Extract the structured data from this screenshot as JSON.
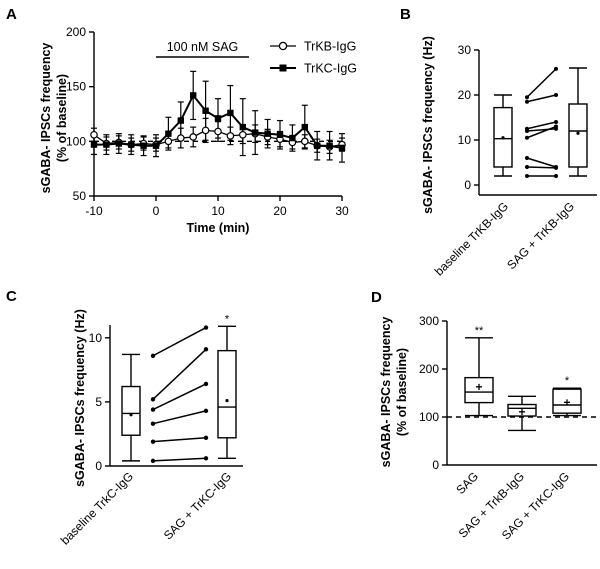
{
  "panels": {
    "A": "A",
    "B": "B",
    "C": "C",
    "D": "D"
  },
  "chart_data": [
    {
      "id": "A",
      "type": "line",
      "title": "",
      "xlabel": "Time (min)",
      "ylabel": [
        "sGABA- IPSCs frequency",
        "(% of baseline)"
      ],
      "xlim": [
        -10,
        30
      ],
      "ylim": [
        50,
        200
      ],
      "xticks": [
        -10,
        0,
        10,
        20,
        30
      ],
      "yticks": [
        50,
        100,
        150,
        200
      ],
      "annotation": "100 nM SAG",
      "sag_window": [
        0,
        15
      ],
      "reference_line": 100,
      "series": [
        {
          "name": "TrKB-IgG",
          "marker": "open-circle",
          "x": [
            -10,
            -8,
            -6,
            -4,
            -2,
            0,
            2,
            4,
            6,
            8,
            10,
            12,
            14,
            16,
            18,
            20,
            22,
            24,
            26,
            28,
            30
          ],
          "y": [
            106,
            98,
            99,
            97,
            98,
            97,
            100,
            103,
            104,
            110,
            109,
            105,
            106,
            107,
            104,
            102,
            99,
            100,
            96,
            95,
            97
          ],
          "err": [
            6,
            6,
            6,
            6,
            6,
            6,
            6,
            9,
            9,
            11,
            9,
            8,
            8,
            8,
            7,
            7,
            6,
            6,
            6,
            6,
            6
          ]
        },
        {
          "name": "TrKC-IgG",
          "marker": "filled-square",
          "x": [
            -10,
            -8,
            -6,
            -4,
            -2,
            0,
            2,
            4,
            6,
            8,
            10,
            12,
            14,
            16,
            18,
            20,
            22,
            24,
            26,
            28,
            30
          ],
          "y": [
            97,
            97,
            98,
            97,
            96,
            96,
            107,
            119,
            142,
            128,
            121,
            126,
            113,
            108,
            107,
            106,
            103,
            113,
            96,
            96,
            94
          ],
          "err": [
            9,
            9,
            9,
            9,
            9,
            10,
            15,
            17,
            22,
            27,
            18,
            25,
            26,
            20,
            13,
            13,
            12,
            20,
            13,
            13,
            13
          ]
        }
      ]
    },
    {
      "id": "B",
      "type": "box",
      "ylabel": "sGABA- IPSCs frequency (Hz)",
      "ylim": [
        0,
        30
      ],
      "yticks": [
        0,
        10,
        20,
        30
      ],
      "categories": [
        "baseline TrKB-IgG",
        "SAG + TrKB-IgG"
      ],
      "boxes": [
        {
          "min": 2,
          "q1": 4,
          "median": 10.3,
          "q3": 17.2,
          "max": 20,
          "mean": 10.5
        },
        {
          "min": 2,
          "q1": 4,
          "median": 12,
          "q3": 18,
          "max": 26,
          "mean": 11.5
        }
      ],
      "pairs": [
        [
          19.5,
          25.8
        ],
        [
          18.5,
          20
        ],
        [
          12.5,
          14
        ],
        [
          12,
          12.5
        ],
        [
          10.5,
          13
        ],
        [
          6,
          4
        ],
        [
          4,
          3.8
        ],
        [
          2,
          2
        ]
      ]
    },
    {
      "id": "C",
      "type": "box",
      "ylabel": "sGABA- IPSCs frequency (Hz)",
      "ylim": [
        0,
        11
      ],
      "yticks": [
        0,
        5,
        10
      ],
      "categories": [
        "baseline TrkC-IgG",
        "SAG + TrKC-IgG"
      ],
      "boxes": [
        {
          "min": 0.4,
          "q1": 2.4,
          "median": 4.1,
          "q3": 6.2,
          "max": 8.7,
          "mean": 4.0
        },
        {
          "min": 0.6,
          "q1": 2.2,
          "median": 4.6,
          "q3": 9.0,
          "max": 10.9,
          "mean": 5.1
        }
      ],
      "pairs": [
        [
          8.6,
          10.8
        ],
        [
          5.2,
          9.1
        ],
        [
          4.4,
          6.4
        ],
        [
          3.3,
          4.3
        ],
        [
          1.9,
          2.2
        ],
        [
          0.4,
          0.6
        ]
      ],
      "significance": [
        "",
        "*"
      ]
    },
    {
      "id": "D",
      "type": "box",
      "ylabel": [
        "sGABA- IPSCs frequency",
        "(% of baseline)"
      ],
      "ylim": [
        0,
        300
      ],
      "yticks": [
        0,
        100,
        200,
        300
      ],
      "reference_line": 100,
      "categories": [
        "SAG",
        "SAG + TrkB-IgG",
        "SAG + TrKC-IgG"
      ],
      "boxes": [
        {
          "min": 103,
          "q1": 130,
          "median": 152,
          "q3": 182,
          "max": 265,
          "mean": 162
        },
        {
          "min": 72,
          "q1": 102,
          "median": 118,
          "q3": 126,
          "max": 143,
          "mean": 110
        },
        {
          "min": 103,
          "q1": 108,
          "median": 125,
          "q3": 158,
          "max": 160,
          "mean": 130
        }
      ],
      "significance": [
        "**",
        "",
        "*"
      ]
    }
  ]
}
